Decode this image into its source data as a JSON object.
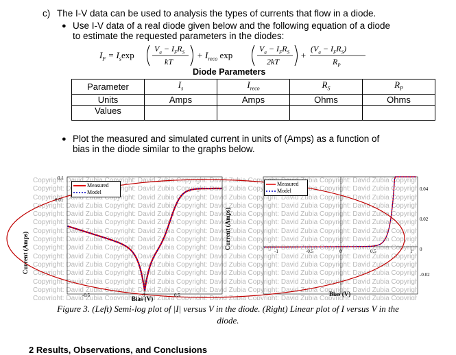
{
  "item_c": {
    "label": "c)",
    "text": "The I-V data can be used to analysis the types of currents that flow in a diode."
  },
  "bullet1": {
    "line1": "Use I-V data of a real diode given below and the following equation of a diode",
    "line2": "to estimate the requested parameters in the diodes:"
  },
  "equation": {
    "lhs": "I",
    "lhs_sub": "F",
    "eq": "= I",
    "is_sub": "s",
    "exp1": "exp",
    "frac1_num": "V",
    "frac1_num_sub": "a",
    "frac1_num_rest": " − I",
    "frac1_num_sub2": "F",
    "frac1_num_rest2": "R",
    "frac1_num_sub3": "S",
    "frac1_den": "kT",
    "plus1": "+ I",
    "ireco_sub": "reco",
    "exp2": "exp",
    "frac2_den": "2kT",
    "plus2": "+",
    "frac3_den": "R",
    "frac3_den_sub": "P"
  },
  "table": {
    "title": "Diode Parameters",
    "row_labels": [
      "Parameter",
      "Units",
      "Values"
    ],
    "param_headers": [
      "I",
      "I",
      "R",
      "R"
    ],
    "param_subs": [
      "s",
      "reco",
      "S",
      "P"
    ],
    "units": [
      "Amps",
      "Amps",
      "Ohms",
      "Ohms"
    ]
  },
  "bullet2": {
    "line1": "Plot the measured and simulated current in units of (Amps) as a function of",
    "line2": "bias in the diode similar to the graphs below."
  },
  "watermark": {
    "text": "Copyright: David Zubia"
  },
  "left_plot": {
    "ylabel": "Current (Amps)",
    "xlabel": "Bias (V)",
    "yticks": [
      "0.1",
      "0.01",
      "1x10",
      "1x10",
      "1x10",
      "1x10",
      "1x10",
      "1x10",
      "1x10",
      "1x10"
    ],
    "xticks": [
      "-0.5",
      "0",
      "0.5"
    ],
    "legend": [
      "Measured",
      "Model"
    ]
  },
  "right_plot": {
    "ylabel": "Current (Amps)",
    "xlabel": "Bias (V)",
    "yticks": [
      "0.04",
      "0.02",
      "0",
      "-0.02"
    ],
    "xticks": [
      "-1",
      "-0.5",
      "0",
      "0.5",
      "1"
    ],
    "legend": [
      "Measured",
      "Model"
    ]
  },
  "caption": {
    "line1": "Figure 3. (Left) Semi-log plot of |I| versus V in the diode. (Right) Linear plot of I versus V in the",
    "line2": "diode."
  },
  "section": {
    "heading": "2   Results, Observations, and Conclusions"
  },
  "colors": {
    "measured": "#e00000",
    "model": "#0000c0",
    "ellipse": "#c00000"
  }
}
